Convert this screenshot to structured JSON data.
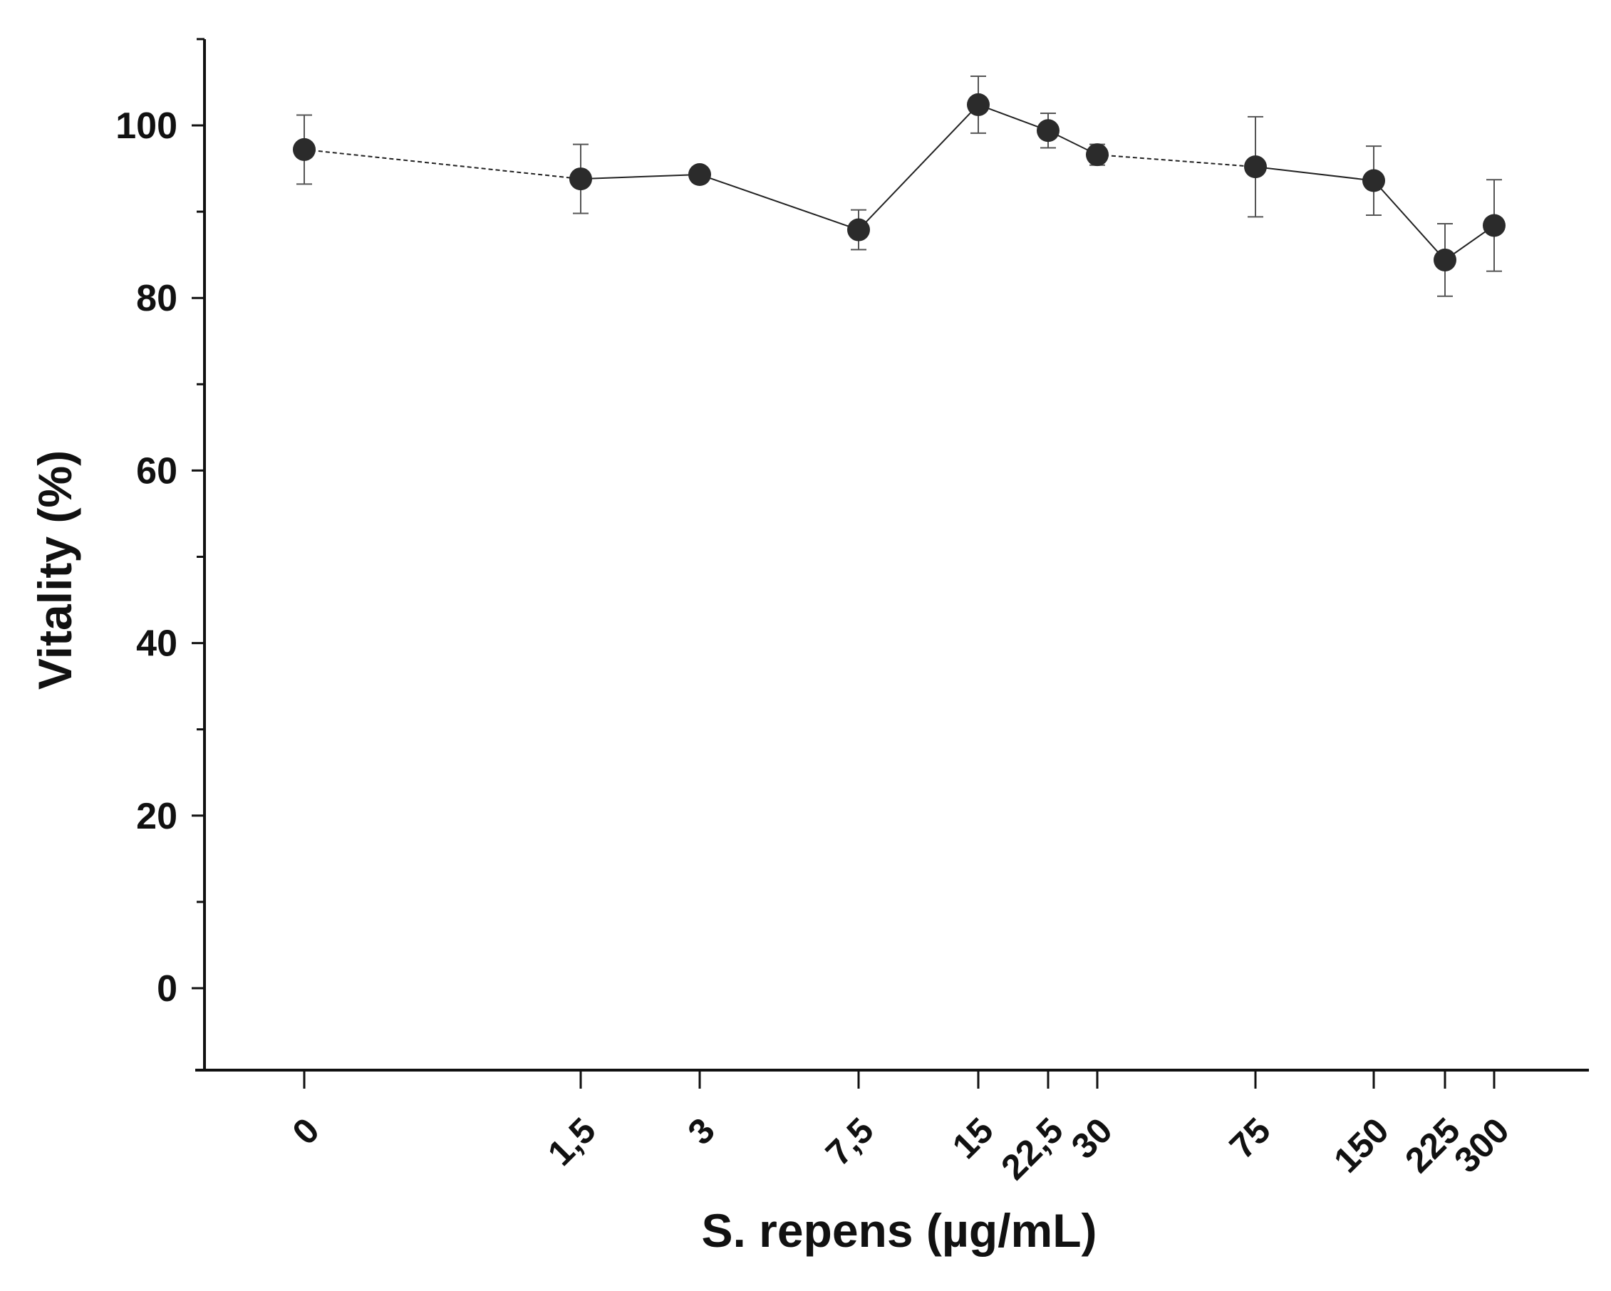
{
  "chart_data": {
    "type": "line",
    "title": "",
    "xlabel": "S. repens (µg/mL)",
    "ylabel": "Vitality (%)",
    "ylim": [
      -10,
      110
    ],
    "y_ticks": [
      0,
      20,
      40,
      60,
      80,
      100
    ],
    "x_scale": "categorical-uneven",
    "categories": [
      "0",
      "1,5",
      "3",
      "7,5",
      "15",
      "22,5",
      "30",
      "75",
      "150",
      "225",
      "300"
    ],
    "series": [
      {
        "name": "Vitality",
        "values": [
          97.2,
          93.8,
          94.3,
          87.9,
          102.4,
          99.4,
          96.6,
          95.2,
          93.6,
          84.4,
          88.4
        ],
        "error": [
          4.0,
          4.0,
          0.8,
          2.3,
          3.3,
          2.0,
          1.2,
          5.8,
          4.0,
          4.2,
          5.3
        ]
      }
    ],
    "grid": false,
    "legend": "none",
    "colors": {
      "marker": "#2b2b2b",
      "line": "#222222",
      "axis": "#111111",
      "error_bar": "#555555"
    }
  }
}
